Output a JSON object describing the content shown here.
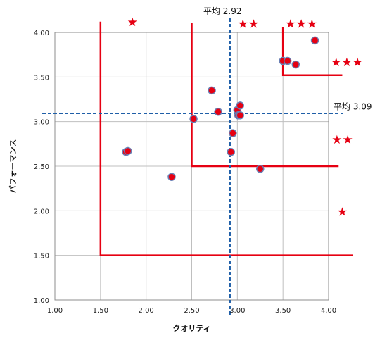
{
  "chart_data": {
    "type": "scatter",
    "title": "",
    "xlabel": "クオリティ",
    "ylabel": "パフォーマンス",
    "xlim": [
      1.0,
      4.0
    ],
    "ylim": [
      1.0,
      4.0
    ],
    "xticks": [
      "1.00",
      "1.50",
      "2.00",
      "2.50",
      "3.00",
      "3.50",
      "4.00"
    ],
    "yticks": [
      "1.00",
      "1.50",
      "2.00",
      "2.50",
      "3.00",
      "3.50",
      "4.00"
    ],
    "grid": true,
    "legend": "none",
    "colors": {
      "point_fill": "#e60012",
      "point_stroke": "#6a7fb4",
      "average_line": "#1f5fa8",
      "boundary": "#e60012",
      "grid": "#bfbfbf"
    },
    "points": [
      {
        "x": 1.78,
        "y": 2.66
      },
      {
        "x": 1.8,
        "y": 2.67
      },
      {
        "x": 2.28,
        "y": 2.38
      },
      {
        "x": 2.52,
        "y": 3.03
      },
      {
        "x": 2.72,
        "y": 3.35
      },
      {
        "x": 2.79,
        "y": 3.11
      },
      {
        "x": 2.93,
        "y": 2.66
      },
      {
        "x": 2.95,
        "y": 2.87
      },
      {
        "x": 3.0,
        "y": 3.13
      },
      {
        "x": 3.01,
        "y": 3.07
      },
      {
        "x": 3.03,
        "y": 3.18
      },
      {
        "x": 3.03,
        "y": 3.07
      },
      {
        "x": 3.25,
        "y": 2.47
      },
      {
        "x": 3.5,
        "y": 3.68
      },
      {
        "x": 3.55,
        "y": 3.68
      },
      {
        "x": 3.64,
        "y": 3.64
      },
      {
        "x": 3.85,
        "y": 3.91
      }
    ],
    "average_lines": {
      "x": {
        "value": 2.92,
        "label": "平均 2.92"
      },
      "y": {
        "value": 3.09,
        "label": "平均 3.09"
      }
    },
    "boundaries": [
      {
        "corner_x": 1.5,
        "corner_y": 1.5,
        "x_end": 4.27,
        "y_top": 4.12
      },
      {
        "corner_x": 2.5,
        "corner_y": 2.5,
        "x_end": 4.11,
        "y_top": 4.11
      },
      {
        "corner_x": 3.5,
        "corner_y": 3.52,
        "x_end": 4.15,
        "y_top": 4.06
      }
    ],
    "star_annotations": [
      {
        "text": "★",
        "x": 1.85,
        "y": 4.12
      },
      {
        "text": "★★",
        "x": 3.12,
        "y": 4.1
      },
      {
        "text": "★★★",
        "x": 3.7,
        "y": 4.1
      },
      {
        "text": "★★★",
        "x": 4.2,
        "y": 3.67
      },
      {
        "text": "★★",
        "x": 4.15,
        "y": 2.8
      },
      {
        "text": "★",
        "x": 4.15,
        "y": 1.99
      }
    ]
  }
}
